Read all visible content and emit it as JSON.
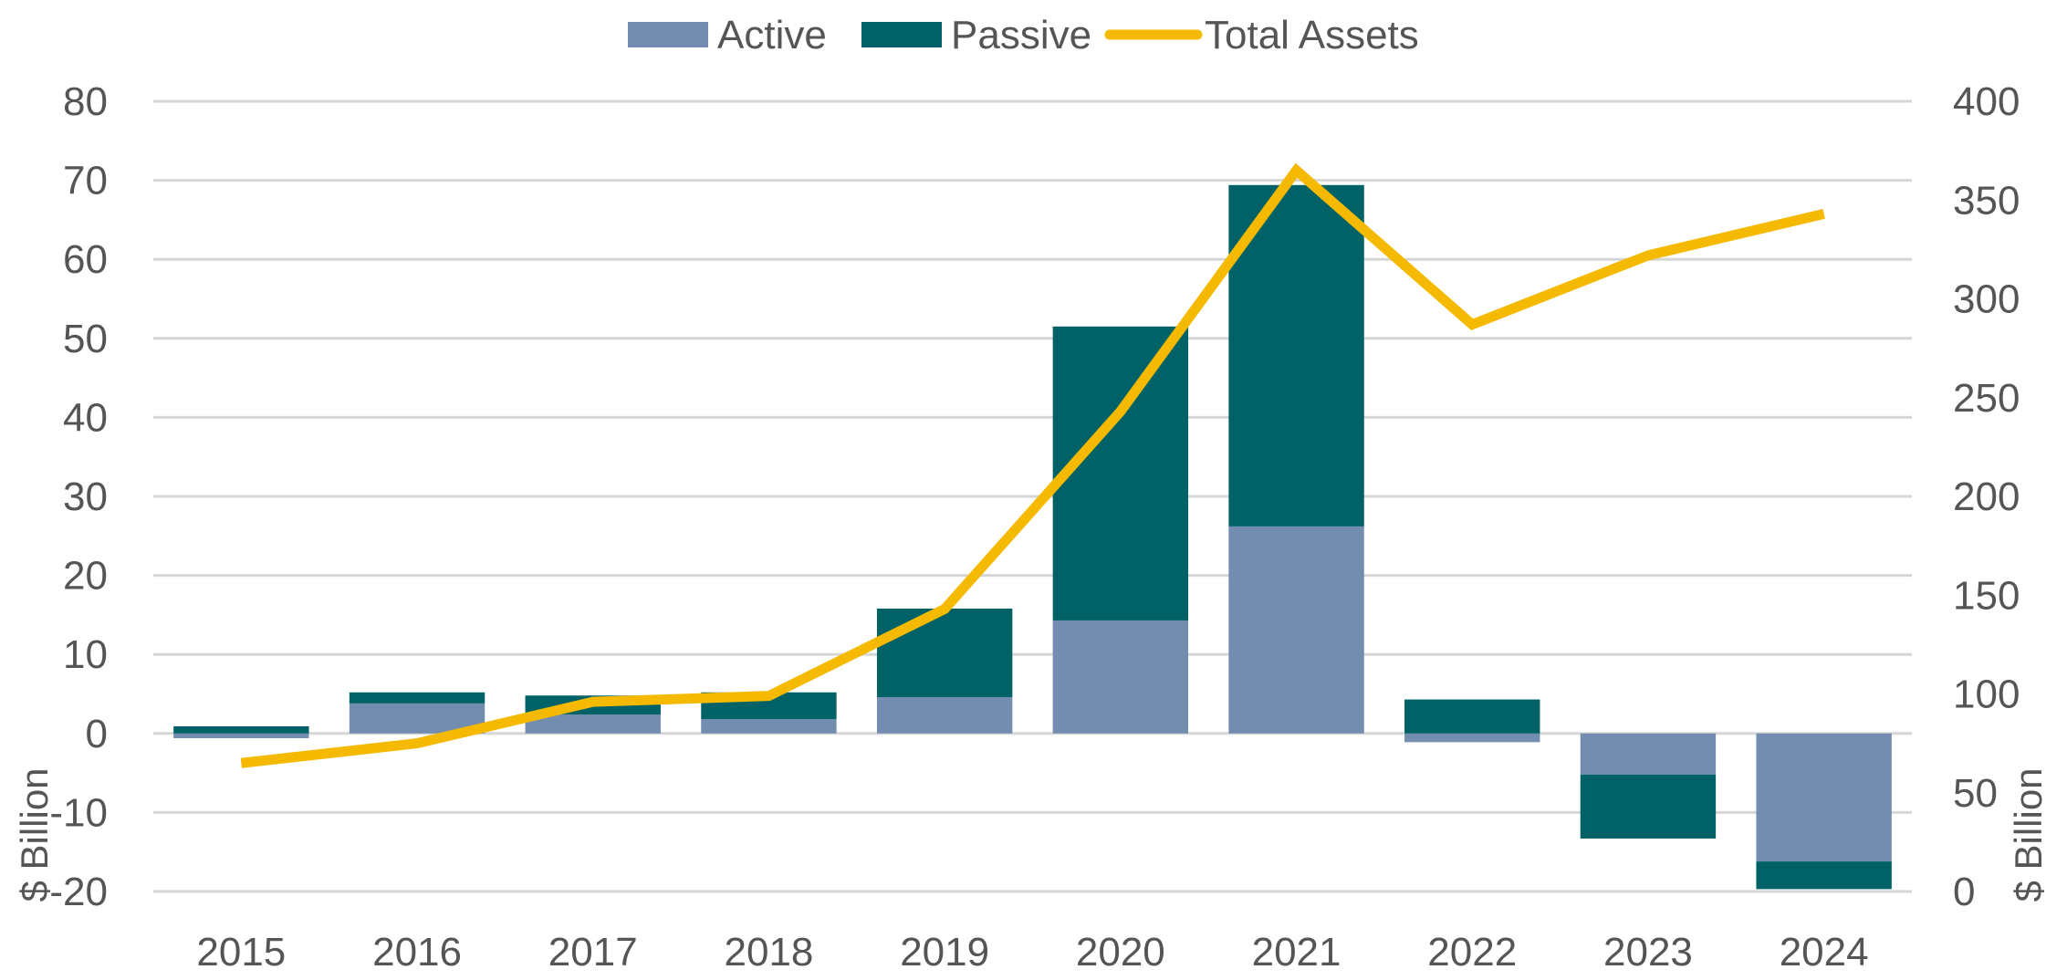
{
  "chart_data": {
    "type": "bar",
    "stacked": true,
    "categories": [
      "2015",
      "2016",
      "2017",
      "2018",
      "2019",
      "2020",
      "2021",
      "2022",
      "2023",
      "2024"
    ],
    "series": [
      {
        "name": "Active",
        "axis": "left",
        "kind": "bar",
        "color": "#728DB0",
        "values": [
          -0.6,
          3.8,
          2.4,
          1.8,
          4.6,
          14.3,
          26.2,
          -1.1,
          -5.2,
          -16.2
        ]
      },
      {
        "name": "Passive",
        "axis": "left",
        "kind": "bar",
        "color": "#006166",
        "values": [
          0.9,
          1.4,
          2.4,
          3.4,
          11.2,
          37.2,
          43.2,
          4.3,
          -8.1,
          -3.5
        ]
      },
      {
        "name": "Total Assets",
        "axis": "right",
        "kind": "line",
        "color": "#F5BA00",
        "values": [
          65,
          75,
          96,
          99,
          143,
          243,
          365,
          287,
          322,
          343
        ]
      }
    ],
    "y_left": {
      "label": "$ Billion",
      "ylim": [
        -20,
        80
      ],
      "ticks": [
        "80",
        "70",
        "60",
        "50",
        "40",
        "30",
        "20",
        "10",
        "0",
        "-10",
        "-20"
      ]
    },
    "y_right": {
      "label": "$ Billion",
      "ylim": [
        0,
        400
      ],
      "ticks": [
        "400",
        "350",
        "300",
        "250",
        "200",
        "150",
        "100",
        "50",
        "0"
      ]
    },
    "grid": true,
    "legend": "top-center",
    "title": "",
    "xlabel": ""
  }
}
